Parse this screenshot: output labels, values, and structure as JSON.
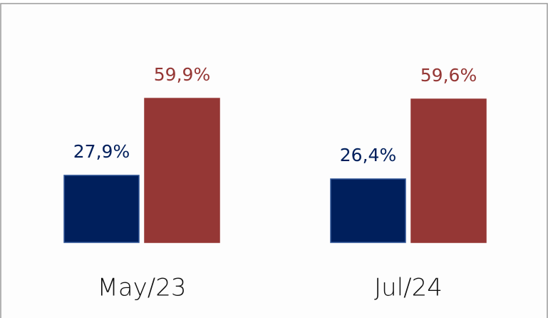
{
  "chart_data": {
    "type": "bar",
    "categories": [
      "May/23",
      "Jul/24"
    ],
    "series": [
      {
        "color": "#001f5c",
        "values": [
          27.9,
          26.4
        ],
        "value_labels": [
          "27,9%",
          "26,4%"
        ]
      },
      {
        "color": "#953735",
        "values": [
          59.9,
          59.6
        ],
        "value_labels": [
          "59,9%",
          "59,6%"
        ]
      }
    ],
    "ylim": [
      0,
      70
    ]
  }
}
